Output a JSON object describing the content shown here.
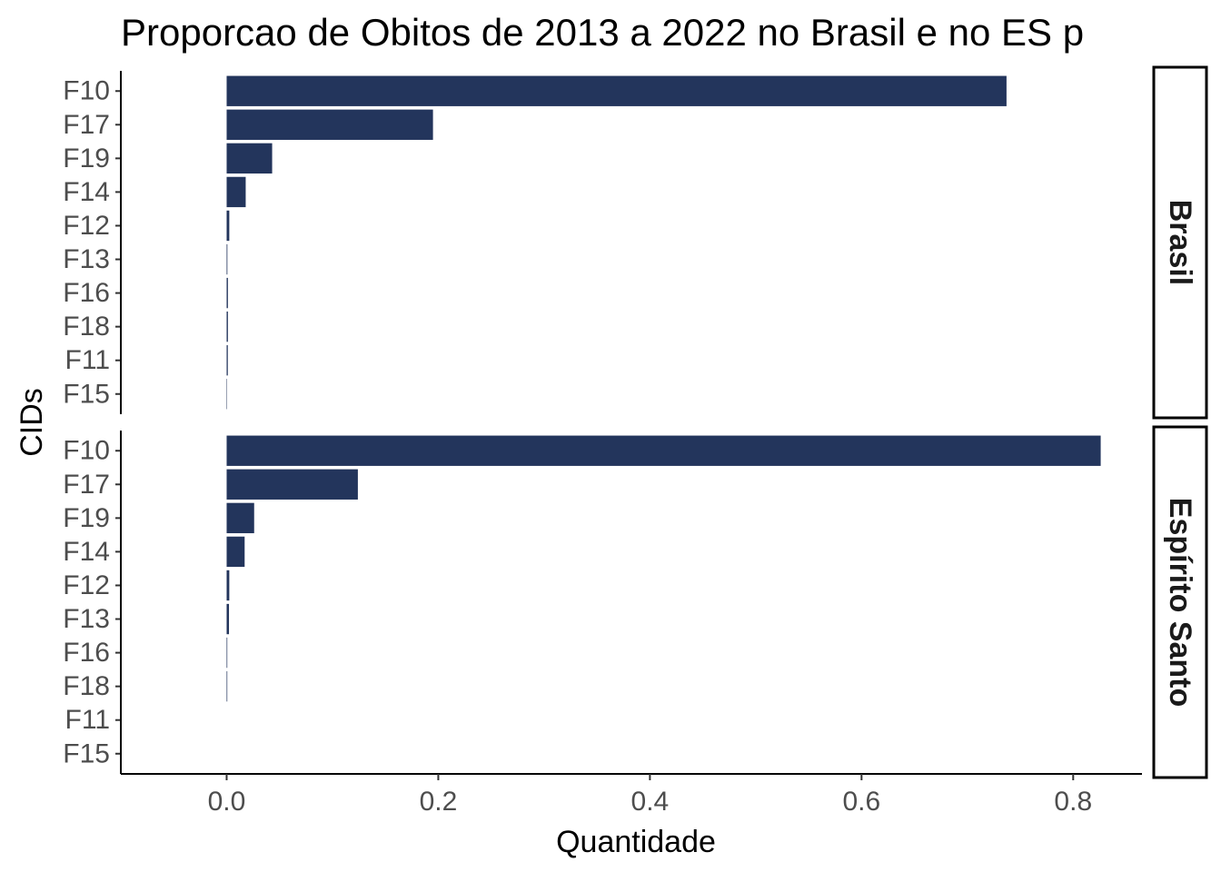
{
  "chart_data": {
    "type": "bar",
    "orientation": "horizontal",
    "title": "Proporcao de Obitos de 2013 a 2022 no Brasil e no ES p",
    "xlabel": "Quantidade",
    "ylabel": "CIDs",
    "xlim": [
      -0.1,
      0.865
    ],
    "x_ticks": [
      "0.0",
      "0.2",
      "0.4",
      "0.6",
      "0.8"
    ],
    "x_tick_values": [
      0.0,
      0.2,
      0.4,
      0.6,
      0.8
    ],
    "categories": [
      "F10",
      "F17",
      "F19",
      "F14",
      "F12",
      "F13",
      "F16",
      "F18",
      "F11",
      "F15"
    ],
    "bar_color": "#23355c",
    "grid": false,
    "panels": [
      {
        "name": "Brasil",
        "values": [
          0.737,
          0.195,
          0.043,
          0.018,
          0.0025,
          0.0007,
          0.0012,
          0.0012,
          0.0011,
          0.0004
        ]
      },
      {
        "name": "Espírito Santo",
        "values": [
          0.826,
          0.124,
          0.026,
          0.017,
          0.0025,
          0.0022,
          0.0006,
          0.0006,
          0.0,
          0.0
        ]
      }
    ]
  }
}
